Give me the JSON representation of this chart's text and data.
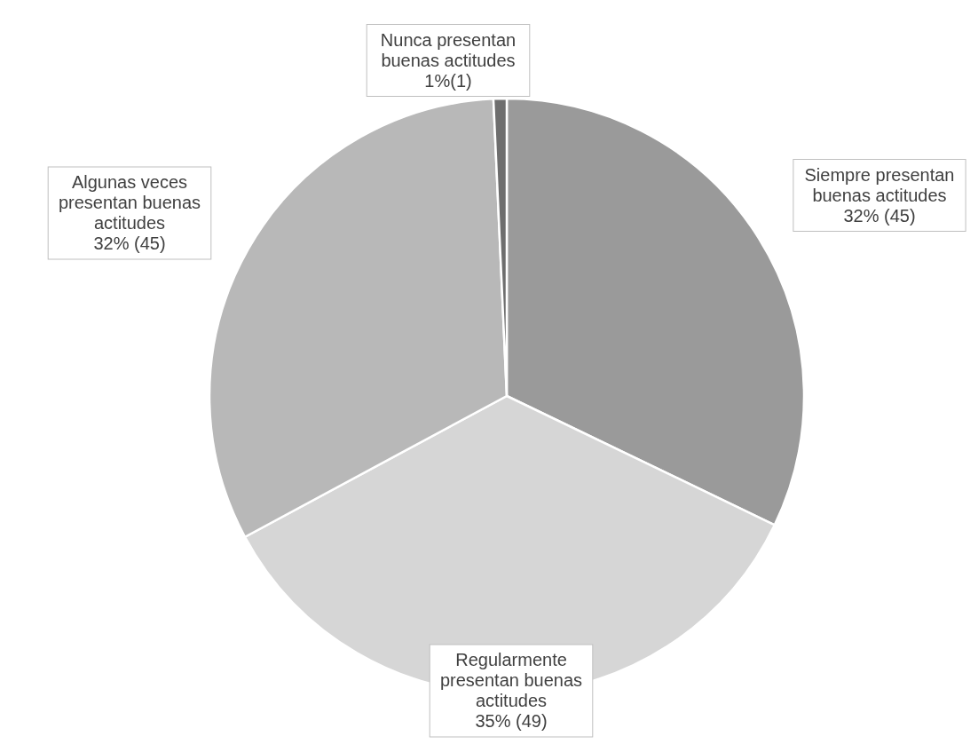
{
  "chart_data": {
    "type": "pie",
    "categories": [
      "Siempre presentan buenas actitudes",
      "Regularmente presentan buenas actitudes",
      "Algunas veces presentan buenas actitudes",
      "Nunca presentan buenas actitudes"
    ],
    "values": [
      45,
      49,
      45,
      1
    ],
    "colors": [
      "#9a9a9a",
      "#d6d6d6",
      "#b8b8b8",
      "#6e6e6e"
    ],
    "value_labels": [
      "32% (45)",
      "35% (49)",
      "32% (45)",
      "1%(1)"
    ]
  }
}
